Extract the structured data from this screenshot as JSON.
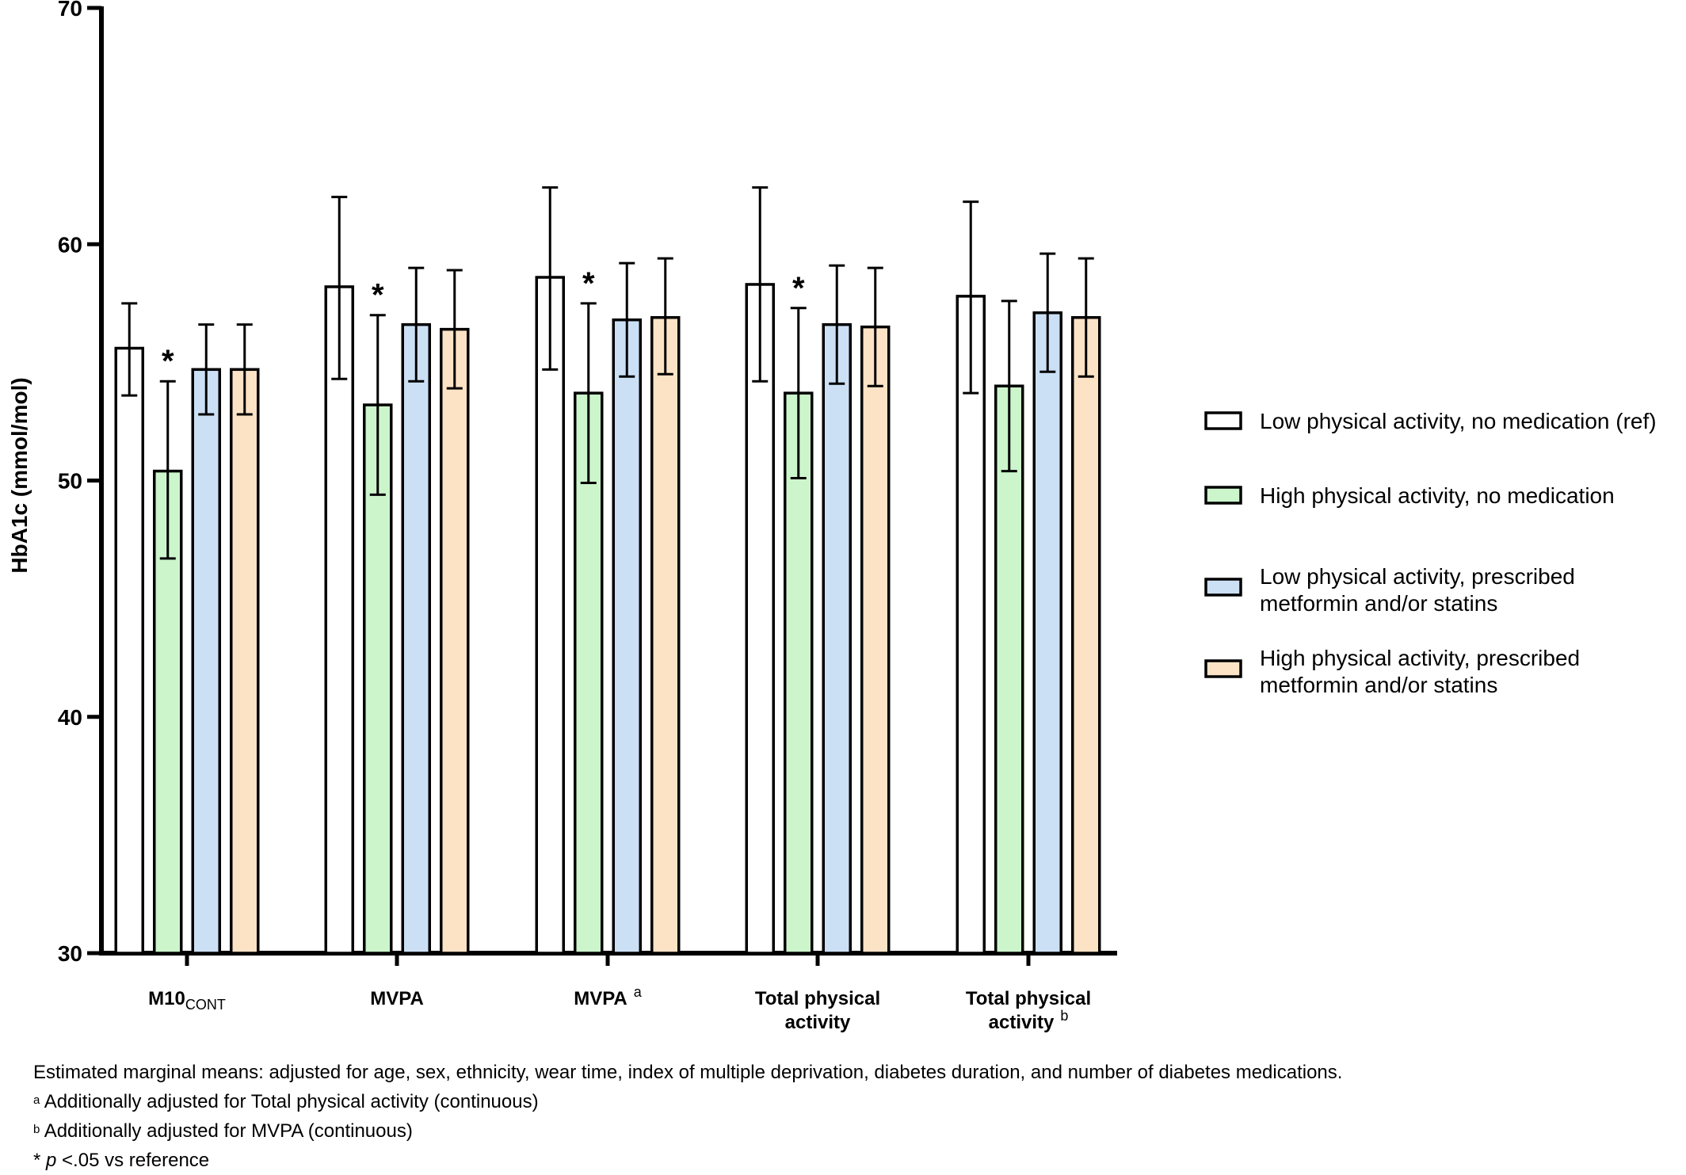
{
  "chart_data": {
    "type": "bar",
    "ylabel": "HbA1c (mmol/mol)",
    "ylim": [
      30,
      70
    ],
    "yticks": [
      "30",
      "40",
      "50",
      "60",
      "70"
    ],
    "grid": false,
    "legend_position": "right",
    "categories": [
      {
        "main": "M10",
        "sub": "CONT",
        "sup": ""
      },
      {
        "main": "MVPA",
        "sub": "",
        "sup": ""
      },
      {
        "main": "MVPA",
        "sub": "",
        "sup": "a"
      },
      {
        "main": "Total physical activity",
        "lines": [
          "Total physical",
          "activity"
        ],
        "sub": "",
        "sup": ""
      },
      {
        "main": "Total physical activity",
        "lines": [
          "Total physical",
          "activity"
        ],
        "sub": "",
        "sup": "b"
      }
    ],
    "series": [
      {
        "name": "Low physical activity, no medication (ref)",
        "legend_lines": [
          "Low physical activity, no medication (ref)"
        ],
        "color": "#ffffff",
        "values": [
          55.6,
          58.2,
          58.6,
          58.3,
          57.8
        ],
        "err_low": [
          53.6,
          54.3,
          54.7,
          54.2,
          53.7
        ],
        "err_high": [
          57.5,
          62.0,
          62.4,
          62.4,
          61.8
        ],
        "significant": [
          false,
          false,
          false,
          false,
          false
        ]
      },
      {
        "name": "High physical activity, no medication",
        "legend_lines": [
          "High physical activity, no medication"
        ],
        "color": "#ccf5cc",
        "values": [
          50.4,
          53.2,
          53.7,
          53.7,
          54.0
        ],
        "err_low": [
          46.7,
          49.4,
          49.9,
          50.1,
          50.4
        ],
        "err_high": [
          54.2,
          57.0,
          57.5,
          57.3,
          57.6
        ],
        "significant": [
          true,
          true,
          true,
          true,
          false
        ]
      },
      {
        "name": "Low physical activity, prescribed metformin and/or statins",
        "legend_lines": [
          "Low physical activity, prescribed",
          "metformin and/or statins"
        ],
        "color": "#cce0f5",
        "values": [
          54.7,
          56.6,
          56.8,
          56.6,
          57.1
        ],
        "err_low": [
          52.8,
          54.2,
          54.4,
          54.1,
          54.6
        ],
        "err_high": [
          56.6,
          59.0,
          59.2,
          59.1,
          59.6
        ],
        "significant": [
          false,
          false,
          false,
          false,
          false
        ]
      },
      {
        "name": "High physical activity, prescribed metformin and/or statins",
        "legend_lines": [
          "High physical activity, prescribed",
          "metformin and/or statins"
        ],
        "color": "#fde3c6",
        "values": [
          54.7,
          56.4,
          56.9,
          56.5,
          56.9
        ],
        "err_low": [
          52.8,
          53.9,
          54.5,
          54.0,
          54.4
        ],
        "err_high": [
          56.6,
          58.9,
          59.4,
          59.0,
          59.4
        ],
        "significant": [
          false,
          false,
          false,
          false,
          false
        ]
      }
    ],
    "significance_marker": "*"
  },
  "notes": {
    "line1": "Estimated marginal means: adjusted for age, sex, ethnicity, wear time, index of multiple deprivation, diabetes duration, and number of diabetes medications.",
    "line2_sup": "a",
    "line2": " Additionally adjusted for Total physical activity (continuous)",
    "line3_sup": "b",
    "line3": " Additionally adjusted for MVPA (continuous)",
    "line4_star": "* ",
    "line4_p": "p",
    "line4": " <.05 vs reference"
  }
}
